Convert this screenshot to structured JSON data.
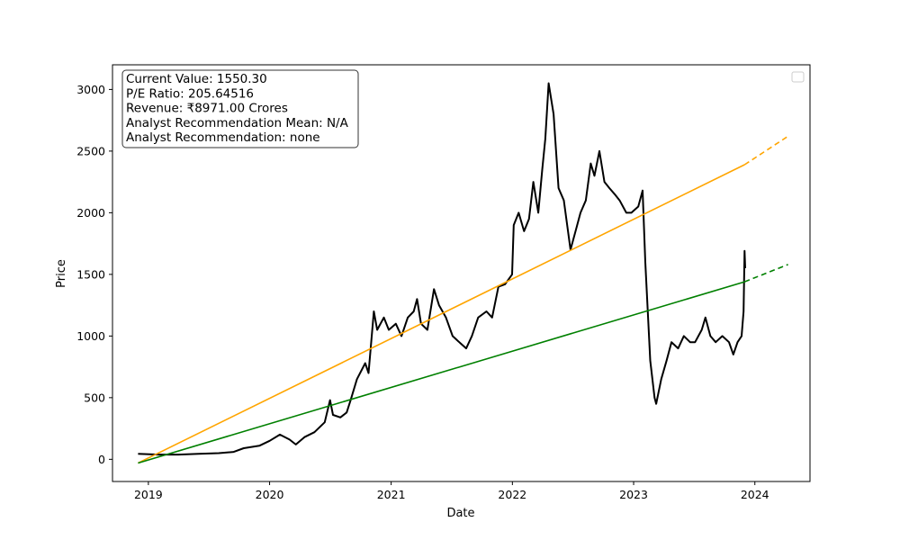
{
  "chart_data": {
    "type": "line",
    "xlabel": "Date",
    "ylabel": "Price",
    "x_axis_type": "date",
    "xlim": [
      "2018-09-15",
      "2024-06-15"
    ],
    "ylim": [
      -180,
      3200
    ],
    "x_ticks": [
      "2019",
      "2020",
      "2021",
      "2022",
      "2023",
      "2024"
    ],
    "y_ticks": [
      0,
      500,
      1000,
      1500,
      2000,
      2500,
      3000
    ],
    "grid": false,
    "legend": {
      "placement": "top-right",
      "entries": []
    },
    "info_box": {
      "placement": "top-left",
      "lines": [
        "Current Value: 1550.30",
        "P/E Ratio: 205.64516",
        "Revenue: ₹8971.00 Crores",
        "Analyst Recommendation Mean: N/A",
        "Analyst Recommendation: none"
      ]
    },
    "series": [
      {
        "color": "#000000",
        "style": "solid",
        "points": [
          [
            "2018-12-01",
            45
          ],
          [
            "2019-02-01",
            38
          ],
          [
            "2019-04-01",
            38
          ],
          [
            "2019-06-01",
            45
          ],
          [
            "2019-08-01",
            50
          ],
          [
            "2019-09-15",
            60
          ],
          [
            "2019-10-15",
            90
          ],
          [
            "2019-12-01",
            110
          ],
          [
            "2020-01-01",
            150
          ],
          [
            "2020-02-01",
            200
          ],
          [
            "2020-03-01",
            160
          ],
          [
            "2020-03-20",
            120
          ],
          [
            "2020-04-15",
            180
          ],
          [
            "2020-05-15",
            220
          ],
          [
            "2020-06-15",
            300
          ],
          [
            "2020-07-01",
            480
          ],
          [
            "2020-07-10",
            360
          ],
          [
            "2020-08-01",
            340
          ],
          [
            "2020-08-20",
            380
          ],
          [
            "2020-09-01",
            480
          ],
          [
            "2020-09-20",
            650
          ],
          [
            "2020-10-15",
            780
          ],
          [
            "2020-10-25",
            700
          ],
          [
            "2020-11-10",
            1200
          ],
          [
            "2020-11-20",
            1050
          ],
          [
            "2020-12-10",
            1150
          ],
          [
            "2020-12-25",
            1050
          ],
          [
            "2021-01-15",
            1100
          ],
          [
            "2021-02-01",
            1000
          ],
          [
            "2021-02-20",
            1150
          ],
          [
            "2021-03-10",
            1200
          ],
          [
            "2021-03-20",
            1300
          ],
          [
            "2021-04-01",
            1100
          ],
          [
            "2021-04-20",
            1050
          ],
          [
            "2021-05-10",
            1380
          ],
          [
            "2021-05-25",
            1250
          ],
          [
            "2021-06-15",
            1150
          ],
          [
            "2021-07-05",
            1000
          ],
          [
            "2021-07-25",
            950
          ],
          [
            "2021-08-15",
            900
          ],
          [
            "2021-09-01",
            1000
          ],
          [
            "2021-09-20",
            1150
          ],
          [
            "2021-10-15",
            1200
          ],
          [
            "2021-11-01",
            1150
          ],
          [
            "2021-11-20",
            1400
          ],
          [
            "2021-12-10",
            1420
          ],
          [
            "2021-12-31",
            1500
          ],
          [
            "2022-01-05",
            1900
          ],
          [
            "2022-01-20",
            2000
          ],
          [
            "2022-02-05",
            1850
          ],
          [
            "2022-02-20",
            1950
          ],
          [
            "2022-03-05",
            2250
          ],
          [
            "2022-03-20",
            2000
          ],
          [
            "2022-04-01",
            2350
          ],
          [
            "2022-04-10",
            2600
          ],
          [
            "2022-04-20",
            3050
          ],
          [
            "2022-05-05",
            2800
          ],
          [
            "2022-05-20",
            2200
          ],
          [
            "2022-06-05",
            2100
          ],
          [
            "2022-06-25",
            1700
          ],
          [
            "2022-07-10",
            1850
          ],
          [
            "2022-07-25",
            2000
          ],
          [
            "2022-08-10",
            2100
          ],
          [
            "2022-08-25",
            2400
          ],
          [
            "2022-09-05",
            2300
          ],
          [
            "2022-09-20",
            2500
          ],
          [
            "2022-10-05",
            2250
          ],
          [
            "2022-10-20",
            2200
          ],
          [
            "2022-11-05",
            2150
          ],
          [
            "2022-11-20",
            2100
          ],
          [
            "2022-12-10",
            2000
          ],
          [
            "2022-12-25",
            2000
          ],
          [
            "2023-01-15",
            2050
          ],
          [
            "2023-01-28",
            2180
          ],
          [
            "2023-02-05",
            1600
          ],
          [
            "2023-02-20",
            800
          ],
          [
            "2023-03-05",
            500
          ],
          [
            "2023-03-10",
            450
          ],
          [
            "2023-03-25",
            650
          ],
          [
            "2023-04-10",
            800
          ],
          [
            "2023-04-25",
            950
          ],
          [
            "2023-05-15",
            900
          ],
          [
            "2023-06-01",
            1000
          ],
          [
            "2023-06-20",
            950
          ],
          [
            "2023-07-05",
            950
          ],
          [
            "2023-07-25",
            1050
          ],
          [
            "2023-08-05",
            1150
          ],
          [
            "2023-08-20",
            1000
          ],
          [
            "2023-09-05",
            950
          ],
          [
            "2023-09-25",
            1000
          ],
          [
            "2023-10-15",
            950
          ],
          [
            "2023-10-28",
            850
          ],
          [
            "2023-11-10",
            950
          ],
          [
            "2023-11-22",
            1000
          ],
          [
            "2023-11-28",
            1200
          ],
          [
            "2023-12-01",
            1690
          ],
          [
            "2023-12-03",
            1550
          ]
        ]
      },
      {
        "color": "#ffa500",
        "style": "solid",
        "points": [
          [
            "2018-12-01",
            -30
          ],
          [
            "2023-12-01",
            2390
          ]
        ]
      },
      {
        "color": "#ffa500",
        "style": "dashed",
        "points": [
          [
            "2023-12-01",
            2390
          ],
          [
            "2024-04-10",
            2620
          ]
        ]
      },
      {
        "color": "#008000",
        "style": "solid",
        "points": [
          [
            "2018-12-01",
            -30
          ],
          [
            "2023-12-01",
            1440
          ]
        ]
      },
      {
        "color": "#008000",
        "style": "dashed",
        "points": [
          [
            "2023-12-01",
            1440
          ],
          [
            "2024-04-10",
            1580
          ]
        ]
      }
    ]
  }
}
